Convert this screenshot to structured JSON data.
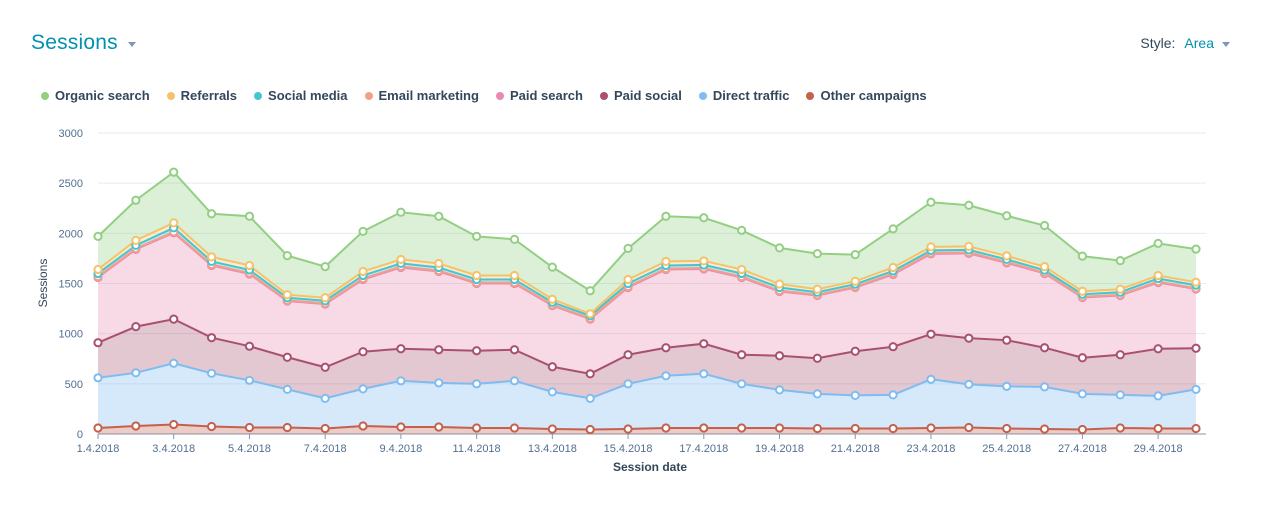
{
  "header": {
    "title": "Sessions",
    "style_label": "Style:",
    "style_value": "Area"
  },
  "colors": {
    "Organic search": "#93cf83",
    "Referrals": "#f5c26b",
    "Social media": "#45c5d0",
    "Email marketing": "#f2a08c",
    "Paid search": "#e68bb1",
    "Paid social": "#a9506f",
    "Direct traffic": "#7fbcf0",
    "Other campaigns": "#c4604e"
  },
  "chart_data": {
    "type": "area",
    "stacked": true,
    "title": "Sessions",
    "xlabel": "Session date",
    "ylabel": "Sessions",
    "ylim": [
      0,
      3000
    ],
    "yticks": [
      0,
      500,
      1000,
      1500,
      2000,
      2500,
      3000
    ],
    "x": [
      "1.4.2018",
      "2.4.2018",
      "3.4.2018",
      "4.4.2018",
      "5.4.2018",
      "6.4.2018",
      "7.4.2018",
      "8.4.2018",
      "9.4.2018",
      "10.4.2018",
      "11.4.2018",
      "12.4.2018",
      "13.4.2018",
      "14.4.2018",
      "15.4.2018",
      "16.4.2018",
      "17.4.2018",
      "18.4.2018",
      "19.4.2018",
      "20.4.2018",
      "21.4.2018",
      "22.4.2018",
      "23.4.2018",
      "24.4.2018",
      "25.4.2018",
      "26.4.2018",
      "27.4.2018",
      "28.4.2018",
      "29.4.2018",
      "30.4.2018"
    ],
    "xtick_labels": [
      "1.4.2018",
      "3.4.2018",
      "5.4.2018",
      "7.4.2018",
      "9.4.2018",
      "11.4.2018",
      "13.4.2018",
      "15.4.2018",
      "17.4.2018",
      "19.4.2018",
      "21.4.2018",
      "23.4.2018",
      "25.4.2018",
      "27.4.2018",
      "29.4.2018"
    ],
    "legend_position": "top-left",
    "series": [
      {
        "name": "Other campaigns",
        "values": [
          60,
          80,
          95,
          75,
          65,
          65,
          55,
          80,
          70,
          70,
          60,
          60,
          50,
          45,
          50,
          60,
          60,
          60,
          60,
          55,
          55,
          55,
          60,
          65,
          55,
          50,
          45,
          60,
          55,
          55
        ]
      },
      {
        "name": "Direct traffic",
        "values": [
          500,
          530,
          610,
          530,
          470,
          380,
          300,
          370,
          460,
          440,
          440,
          470,
          370,
          310,
          450,
          520,
          540,
          440,
          380,
          345,
          330,
          335,
          485,
          430,
          420,
          420,
          355,
          330,
          325,
          390
        ]
      },
      {
        "name": "Paid social",
        "values": [
          350,
          460,
          440,
          355,
          340,
          320,
          310,
          370,
          320,
          330,
          330,
          310,
          250,
          245,
          290,
          280,
          300,
          290,
          340,
          355,
          440,
          480,
          450,
          460,
          460,
          390,
          360,
          400,
          470,
          410
        ]
      },
      {
        "name": "Paid search",
        "values": [
          650,
          770,
          860,
          720,
          720,
          560,
          630,
          720,
          810,
          780,
          670,
          660,
          610,
          545,
          670,
          780,
          745,
          770,
          640,
          625,
          635,
          720,
          800,
          845,
          770,
          740,
          600,
          590,
          660,
          590
        ]
      },
      {
        "name": "Email marketing",
        "values": [
          10,
          10,
          10,
          10,
          10,
          8,
          8,
          10,
          10,
          10,
          10,
          10,
          8,
          8,
          10,
          10,
          10,
          10,
          10,
          8,
          8,
          10,
          10,
          10,
          10,
          8,
          8,
          8,
          10,
          8
        ]
      },
      {
        "name": "Social media",
        "values": [
          30,
          30,
          40,
          30,
          30,
          25,
          25,
          30,
          30,
          30,
          30,
          30,
          25,
          25,
          30,
          30,
          30,
          30,
          30,
          25,
          25,
          25,
          25,
          25,
          25,
          25,
          25,
          25,
          30,
          30
        ]
      },
      {
        "name": "Referrals",
        "values": [
          40,
          50,
          50,
          45,
          45,
          30,
          30,
          40,
          40,
          40,
          40,
          40,
          30,
          20,
          40,
          40,
          40,
          40,
          35,
          30,
          30,
          35,
          35,
          35,
          35,
          35,
          30,
          30,
          30,
          30
        ]
      },
      {
        "name": "Organic search",
        "values": [
          330,
          400,
          505,
          430,
          490,
          390,
          310,
          400,
          470,
          470,
          390,
          360,
          320,
          230,
          310,
          450,
          430,
          390,
          360,
          355,
          265,
          385,
          445,
          410,
          400,
          410,
          350,
          285,
          320,
          330
        ]
      }
    ]
  }
}
